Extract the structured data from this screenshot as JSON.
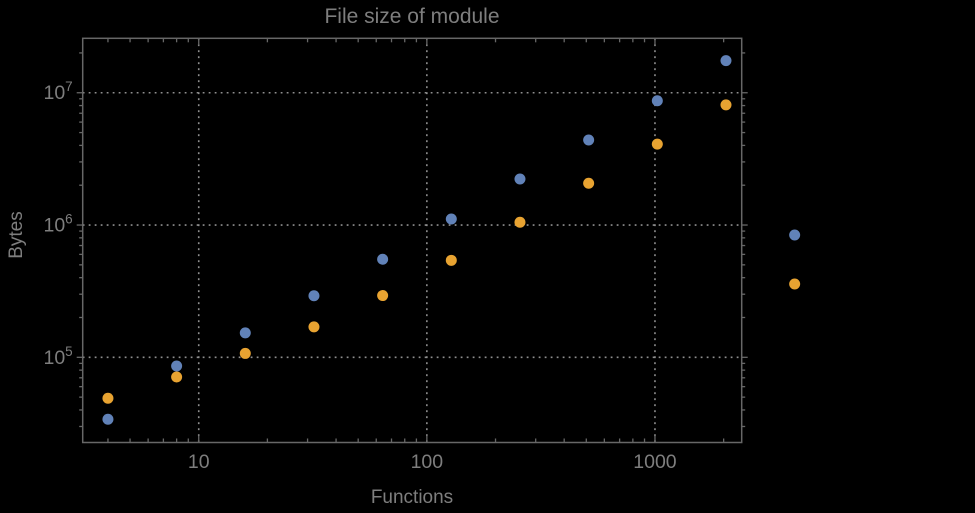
{
  "theme": {
    "background": "#000000",
    "text": "#7e7e7e",
    "frame": "#676767",
    "grid": "#8f8f8f"
  },
  "chart_data": {
    "type": "scatter",
    "title": "File size of module",
    "xlabel": "Functions",
    "ylabel": "Bytes",
    "x_scale": "log",
    "y_scale": "log",
    "xlim": [
      3.1,
      2400
    ],
    "ylim": [
      22700,
      25800000
    ],
    "grid": "dotted gridlines at decade ticks only",
    "legend": "none",
    "frame": true,
    "x_ticks": [
      {
        "value": 10,
        "label": "10"
      },
      {
        "value": 100,
        "label": "100"
      },
      {
        "value": 1000,
        "label": "1000"
      }
    ],
    "y_ticks": [
      {
        "value": 100000,
        "mantissa": "10",
        "exponent": "5"
      },
      {
        "value": 1000000,
        "mantissa": "10",
        "exponent": "6"
      },
      {
        "value": 10000000,
        "mantissa": "10",
        "exponent": "7"
      }
    ],
    "x": [
      4,
      8,
      16,
      32,
      64,
      128,
      256,
      512,
      1024,
      2048,
      4096
    ],
    "series": [
      {
        "name": "blue",
        "color": "#6182B8",
        "values": [
          34000,
          86000,
          153000,
          292000,
          551000,
          1110000,
          2230000,
          4390000,
          8700000,
          17500000,
          840000
        ]
      },
      {
        "name": "orange",
        "color": "#E8A331",
        "values": [
          49000,
          71000,
          107000,
          170000,
          293000,
          541000,
          1050000,
          2070000,
          4090000,
          8100000,
          358000
        ]
      }
    ],
    "note_points_outside_frame": "the two points at x=4096 are drawn to the right of the plot frame (plot range is not clipped)"
  }
}
